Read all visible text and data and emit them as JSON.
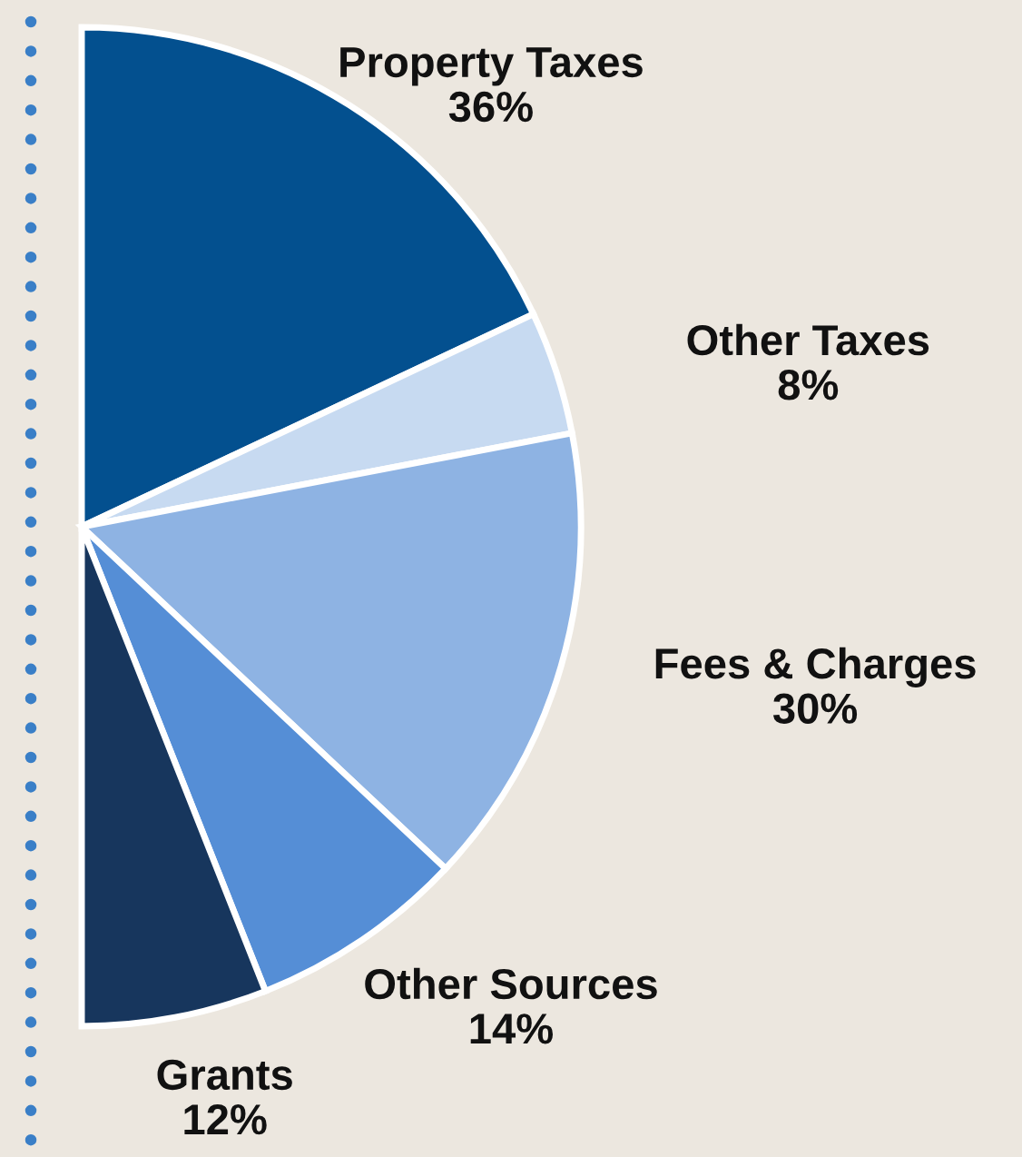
{
  "chart_data": {
    "type": "pie",
    "categories": [
      "Property Taxes",
      "Other Taxes",
      "Fees & Charges",
      "Other Sources",
      "Grants"
    ],
    "values": [
      36,
      8,
      30,
      14,
      12
    ],
    "colors": [
      "#03508f",
      "#c7daf1",
      "#8eb3e3",
      "#558ed6",
      "#17365d"
    ],
    "value_labels": [
      "36%",
      "8%",
      "30%",
      "14%",
      "12%"
    ]
  }
}
